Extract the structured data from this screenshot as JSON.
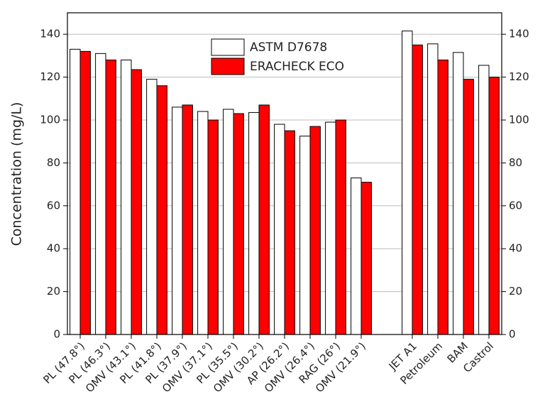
{
  "chart_data": {
    "type": "bar",
    "y_label": "Concentration (mg/L)",
    "categories": [
      "PL (47.8°)",
      "PL (46.3°)",
      "OMV (43.1°)",
      "PL (41.8°)",
      "PL (37.9°)",
      "OMV (37.1°)",
      "PL (35.5°)",
      "OMV (30.2°)",
      "AP (26.2°)",
      "OMV (26.4°)",
      "RAG (26°)",
      "OMV (21.9°)",
      null,
      "JET A1",
      "Petroleum",
      "BAM",
      "Castrol"
    ],
    "series": [
      {
        "name": "ASTM D7678",
        "color": "#ffffff",
        "values": [
          133,
          131,
          128,
          119,
          106,
          104,
          105,
          103.5,
          98,
          92.5,
          99,
          73,
          null,
          141.5,
          135.5,
          131.5,
          125.5
        ]
      },
      {
        "name": "ERACHECK ECO",
        "color": "#ff0000",
        "values": [
          132,
          128,
          123.5,
          116,
          107,
          100,
          103,
          107,
          95,
          97,
          100,
          71,
          null,
          135,
          128,
          119,
          120
        ]
      }
    ],
    "ylim": [
      0,
      150
    ],
    "yticks": [
      0,
      20,
      40,
      60,
      80,
      100,
      120,
      140
    ],
    "y2lim": [
      0,
      150
    ],
    "y2ticks": [
      0,
      20,
      40,
      60,
      80,
      100,
      120,
      140
    ],
    "grid": true
  }
}
